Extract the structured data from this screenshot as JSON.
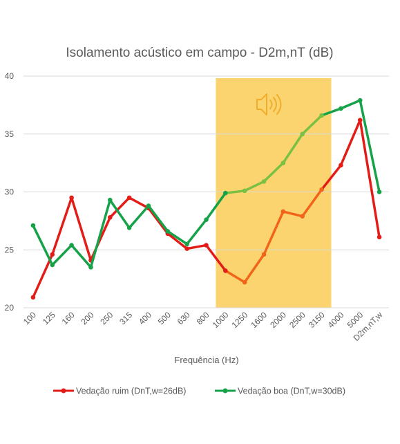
{
  "colors": {
    "bad": "#e31c18",
    "bad_highlight": "#f2641a",
    "good": "#15a249",
    "good_highlight": "#79c043",
    "highlight_band": "#fbd470",
    "icon": "#f1ad28",
    "grid": "#d9d9d9",
    "text": "#595959"
  },
  "icon": "speaker-sound-icon",
  "chart_data": {
    "type": "line",
    "title": "Isolamento acústico em campo - D2m,nT (dB)",
    "xlabel": "Frequência (Hz)",
    "ylabel": "",
    "categories": [
      "100",
      "125",
      "160",
      "200",
      "250",
      "315",
      "400",
      "500",
      "630",
      "800",
      "1000",
      "1250",
      "1600",
      "2000",
      "2500",
      "3150",
      "4000",
      "5000",
      "D2m,nT,w"
    ],
    "ylim": [
      20,
      40
    ],
    "yticks": [
      "20",
      "25",
      "30",
      "35",
      "40"
    ],
    "grid": true,
    "legend_position": "bottom",
    "highlight_range": [
      "1000",
      "3150"
    ],
    "series": [
      {
        "name": "Vedação ruim (DnT,w=26dB)",
        "values": [
          20.9,
          24.6,
          29.5,
          24.1,
          27.8,
          29.5,
          28.6,
          26.4,
          25.1,
          25.4,
          23.2,
          22.2,
          24.6,
          28.3,
          27.9,
          30.2,
          32.3,
          36.2,
          26.1
        ]
      },
      {
        "name": "Vedação boa (DnT,w=30dB)",
        "values": [
          27.1,
          23.7,
          25.4,
          23.5,
          29.3,
          26.9,
          28.8,
          26.6,
          25.5,
          27.6,
          29.9,
          30.1,
          30.9,
          32.5,
          35.0,
          36.6,
          37.2,
          37.9,
          30.0
        ]
      }
    ]
  }
}
